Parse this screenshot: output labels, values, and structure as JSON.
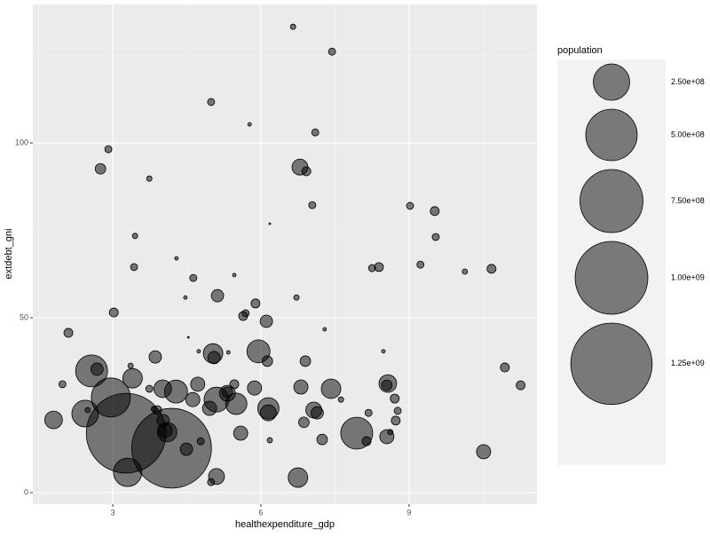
{
  "chart_data": {
    "type": "scatter",
    "x_label": "healthexpenditure_gdp",
    "y_label": "extdebt_gni",
    "legend_title": "population",
    "color": "#000000",
    "alpha": 0.5,
    "grid": true,
    "legend": "right",
    "xlim": [
      1.38,
      11.59
    ],
    "ylim": [
      -3.3,
      139.6
    ],
    "xticks": [
      3,
      6,
      9
    ],
    "yticks": [
      0,
      50,
      100
    ],
    "size_ticks": [
      {
        "value": 250000000,
        "label": "2.50e+08"
      },
      {
        "value": 500000000,
        "label": "5.00e+08"
      },
      {
        "value": 750000000,
        "label": "7.50e+08"
      },
      {
        "value": 1000000000,
        "label": "1.00e+09"
      },
      {
        "value": 1250000000,
        "label": "1.25e+09"
      }
    ],
    "x": [
      6.65,
      7.44,
      4.99,
      5.77,
      7.1,
      2.91,
      2.75,
      3.74,
      6.79,
      6.92,
      7.04,
      9.02,
      9.52,
      6.18,
      9.54,
      3.45,
      4.29,
      3.43,
      9.23,
      8.25,
      8.39,
      10.13,
      10.67,
      4.63,
      5.46,
      5.12,
      6.72,
      4.47,
      5.89,
      5.69,
      5.64,
      3.02,
      6.11,
      7.29,
      2.1,
      4.53,
      8.48,
      4.74,
      5.34,
      5.03,
      5.05,
      5.95,
      3.86,
      6.13,
      6.9,
      2.57,
      2.68,
      3.36,
      10.94,
      3.4,
      1.98,
      8.57,
      8.55,
      11.26,
      4.01,
      4.28,
      4.72,
      5.46,
      5.87,
      6.81,
      7.42,
      3.74,
      2.96,
      2.44,
      2.49,
      5.32,
      5.32,
      4.62,
      5.1,
      5.5,
      7.62,
      8.71,
      8.77,
      3.83,
      3.9,
      4.96,
      6.15,
      6.15,
      7.07,
      7.14,
      8.18,
      8.73,
      1.8,
      3.27,
      4.02,
      4.19,
      4.06,
      4.1,
      6.87,
      5.59,
      4.78,
      4.49,
      6.18,
      7.24,
      7.94,
      8.14,
      8.55,
      8.62,
      3.3,
      10.51,
      5.1,
      4.99,
      6.75
    ],
    "y": [
      133.2,
      126.1,
      111.7,
      105.3,
      103.0,
      98.2,
      92.6,
      89.8,
      93.1,
      91.9,
      82.2,
      82.0,
      80.5,
      76.9,
      73.1,
      73.4,
      67.0,
      64.5,
      65.2,
      64.2,
      64.5,
      63.2,
      64.0,
      61.4,
      62.2,
      56.3,
      55.8,
      55.8,
      54.1,
      51.3,
      50.5,
      51.5,
      49.0,
      46.7,
      45.7,
      44.4,
      40.4,
      40.4,
      40.1,
      39.8,
      38.6,
      40.4,
      38.8,
      37.6,
      37.6,
      34.8,
      35.3,
      36.3,
      35.8,
      32.7,
      31.0,
      31.2,
      30.7,
      30.7,
      29.7,
      28.9,
      31.0,
      31.0,
      29.9,
      30.2,
      29.7,
      29.7,
      27.2,
      22.6,
      23.6,
      28.4,
      28.7,
      26.6,
      26.6,
      25.4,
      26.6,
      26.9,
      23.4,
      23.9,
      23.6,
      24.1,
      24.1,
      22.8,
      23.6,
      22.8,
      22.8,
      20.6,
      20.8,
      17.0,
      20.6,
      12.7,
      17.8,
      17.3,
      20.1,
      17.0,
      14.7,
      12.4,
      15.0,
      15.2,
      17.0,
      14.7,
      16.0,
      17.3,
      5.8,
      11.7,
      4.6,
      3.0,
      4.3
    ],
    "size": [
      5400000,
      9500000,
      9500000,
      2400000,
      9500000,
      9500000,
      21000000,
      5400000,
      48000000,
      15000000,
      9500000,
      9500000,
      15000000,
      600000,
      9500000,
      5400000,
      2400000,
      9500000,
      9500000,
      9500000,
      15000000,
      5400000,
      15000000,
      9500000,
      2400000,
      29000000,
      5400000,
      2400000,
      15000000,
      9500000,
      15000000,
      15000000,
      29000000,
      2400000,
      15000000,
      600000,
      2400000,
      2400000,
      2400000,
      72000000,
      29000000,
      100000000,
      29000000,
      21000000,
      21000000,
      193000000,
      29000000,
      5400000,
      15000000,
      72000000,
      9500000,
      59000000,
      21000000,
      15000000,
      59000000,
      100000000,
      38000000,
      15000000,
      38000000,
      38000000,
      72000000,
      9500000,
      288000000,
      134000000,
      5400000,
      48000000,
      21000000,
      38000000,
      117000000,
      86000000,
      5400000,
      15000000,
      9500000,
      5400000,
      15000000,
      38000000,
      86000000,
      48000000,
      48000000,
      29000000,
      9500000,
      15000000,
      59000000,
      1200000000,
      29000000,
      1200000000,
      38000000,
      72000000,
      21000000,
      38000000,
      9500000,
      29000000,
      5400000,
      21000000,
      193000000,
      15000000,
      38000000,
      5400000,
      152000000,
      38000000,
      48000000,
      9500000,
      72000000
    ]
  }
}
